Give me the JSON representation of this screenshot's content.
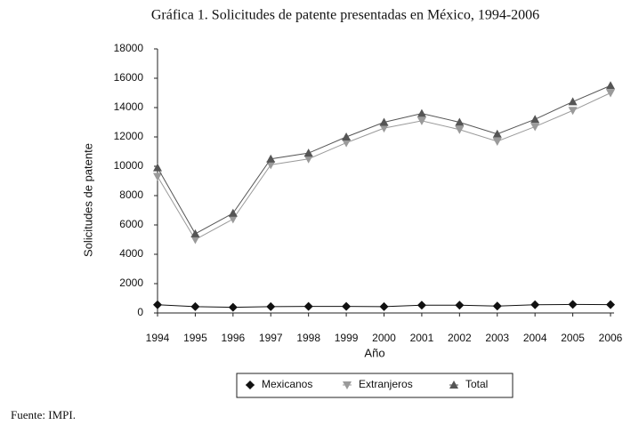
{
  "chart_data": {
    "type": "line",
    "title": "Gráfica 1. Solicitudes de patente presentadas en México, 1994-2006",
    "x_label": "Año",
    "y_label": "Solicitudes de patente",
    "source": "Fuente: IMPI.",
    "categories": [
      "1994",
      "1995",
      "1996",
      "1997",
      "1998",
      "1999",
      "2000",
      "2001",
      "2002",
      "2003",
      "2004",
      "2005",
      "2006"
    ],
    "series": [
      {
        "name": "Mexicanos",
        "color": "#111111",
        "marker": "diamond",
        "values": [
          560,
          430,
          390,
          430,
          450,
          450,
          430,
          530,
          530,
          470,
          560,
          580,
          570
        ]
      },
      {
        "name": "Extranjeros",
        "color": "#9a9a9a",
        "marker": "triangle-down",
        "values": [
          9300,
          5000,
          6400,
          10100,
          10500,
          11600,
          12600,
          13100,
          12500,
          11700,
          12700,
          13800,
          15000
        ]
      },
      {
        "name": "Total",
        "color": "#555555",
        "marker": "triangle-up",
        "values": [
          9900,
          5400,
          6800,
          10500,
          10900,
          12000,
          13000,
          13600,
          13000,
          12200,
          13200,
          14400,
          15500
        ]
      }
    ],
    "ylim": [
      0,
      18000
    ],
    "yticks": [
      0,
      2000,
      4000,
      6000,
      8000,
      10000,
      12000,
      14000,
      16000,
      18000
    ],
    "grid": false,
    "legend": "bottom"
  }
}
